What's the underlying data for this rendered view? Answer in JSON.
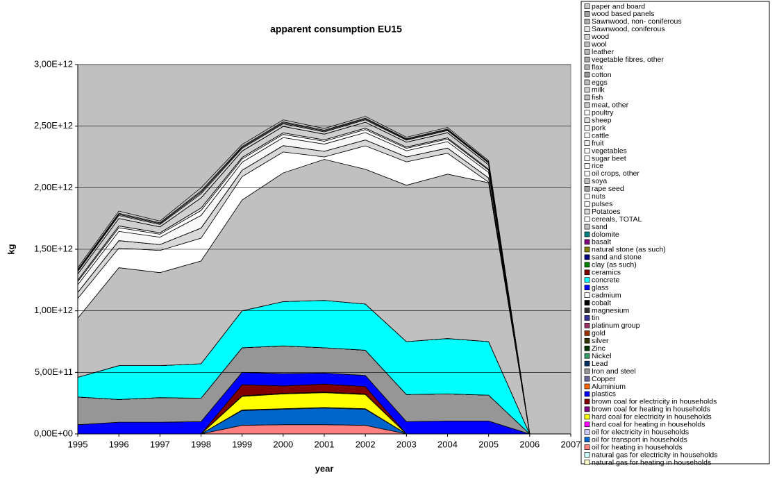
{
  "chart_data": {
    "type": "stacked_area",
    "title": "apparent consumption EU15",
    "x_label": "year",
    "y_label": "kg",
    "x": [
      1995,
      1996,
      1997,
      1998,
      1999,
      2000,
      2001,
      2002,
      2003,
      2004,
      2005,
      2006
    ],
    "xlim": [
      1995,
      2007
    ],
    "xticks": [
      1995,
      1996,
      1997,
      1998,
      1999,
      2000,
      2001,
      2002,
      2003,
      2004,
      2005,
      2006,
      2007
    ],
    "ylim": [
      0,
      3000000000000.0
    ],
    "yticks": [
      {
        "value": 0,
        "label": "0,00E+00"
      },
      {
        "value": 500000000000.0,
        "label": "5,00E+11"
      },
      {
        "value": 1000000000000.0,
        "label": "1,00E+12"
      },
      {
        "value": 1500000000000.0,
        "label": "1,50E+12"
      },
      {
        "value": 2000000000000.0,
        "label": "2,00E+12"
      },
      {
        "value": 2500000000000.0,
        "label": "2,50E+12"
      },
      {
        "value": 3000000000000.0,
        "label": "3,00E+12"
      }
    ],
    "grid": true,
    "legend": "right",
    "series": [
      {
        "name": "paper and board",
        "color": "#c8c8c8",
        "values": [
          15000000000.0,
          18000000000.0,
          14000000000.0,
          25000000000.0,
          16000000000.0,
          16000000000.0,
          14000000000.0,
          14000000000.0,
          12000000000.0,
          13000000000.0,
          10000000000.0,
          0
        ]
      },
      {
        "name": "wood based panels",
        "color": "#a0a0a0",
        "values": [
          8000000000.0,
          9000000000.0,
          7000000000.0,
          12000000000.0,
          8000000000.0,
          8000000000.0,
          7000000000.0,
          7000000000.0,
          6000000000.0,
          6000000000.0,
          5000000000.0,
          0
        ]
      },
      {
        "name": " Sawnwood, non- coniferous",
        "color": "#b0b0b0",
        "values": [
          0,
          0,
          0,
          0,
          0,
          0,
          0,
          0,
          0,
          0,
          0,
          0
        ]
      },
      {
        "name": "Sawnwood, coniferous",
        "color": "#e8e8e8",
        "values": [
          8000000000.0,
          9000000000.0,
          7000000000.0,
          12000000000.0,
          8000000000.0,
          8000000000.0,
          7000000000.0,
          7000000000.0,
          6000000000.0,
          6000000000.0,
          5000000000.0,
          0
        ]
      },
      {
        "name": "wood",
        "color": "#d8d8d8",
        "values": [
          20000000000.0,
          24000000000.0,
          19000000000.0,
          33000000000.0,
          21000000000.0,
          21000000000.0,
          18000000000.0,
          19000000000.0,
          16000000000.0,
          17000000000.0,
          14000000000.0,
          0
        ]
      },
      {
        "name": "wool",
        "color": "#c0c0c0",
        "values": [
          0,
          0,
          0,
          0,
          0,
          0,
          0,
          0,
          0,
          0,
          0,
          0
        ]
      },
      {
        "name": "leather",
        "color": "#b8b8b8",
        "values": [
          0,
          0,
          0,
          0,
          0,
          0,
          0,
          0,
          0,
          0,
          0,
          0
        ]
      },
      {
        "name": "vegetable fibres, other",
        "color": "#a8a8a8",
        "values": [
          0,
          0,
          0,
          0,
          0,
          0,
          0,
          0,
          0,
          0,
          0,
          0
        ]
      },
      {
        "name": "flax",
        "color": "#b0b0b0",
        "values": [
          0,
          0,
          0,
          0,
          0,
          0,
          0,
          0,
          0,
          0,
          0,
          0
        ]
      },
      {
        "name": "cotton",
        "color": "#989898",
        "values": [
          0,
          0,
          0,
          0,
          0,
          0,
          0,
          0,
          0,
          0,
          0,
          0
        ]
      },
      {
        "name": "eggs",
        "color": "#c0c0c0",
        "values": [
          0,
          0,
          0,
          0,
          0,
          0,
          0,
          0,
          0,
          0,
          0,
          0
        ]
      },
      {
        "name": "milk",
        "color": "#d0d0d0",
        "values": [
          50000000000.0,
          60000000000.0,
          48000000000.0,
          82000000000.0,
          52000000000.0,
          52000000000.0,
          46000000000.0,
          48000000000.0,
          40000000000.0,
          42000000000.0,
          35000000000.0,
          0
        ]
      },
      {
        "name": "fish",
        "color": "#c0c0c0",
        "values": [
          0,
          0,
          0,
          0,
          0,
          0,
          0,
          0,
          0,
          0,
          0,
          0
        ]
      },
      {
        "name": "meat, other",
        "color": "#c8c8c8",
        "values": [
          0,
          0,
          0,
          0,
          0,
          0,
          0,
          0,
          0,
          0,
          0,
          0
        ]
      },
      {
        "name": "poultry",
        "color": "#ffffff",
        "values": [
          0,
          0,
          0,
          0,
          0,
          0,
          0,
          0,
          0,
          0,
          0,
          0
        ]
      },
      {
        "name": "sheep",
        "color": "#e0e0e0",
        "values": [
          0,
          0,
          0,
          0,
          0,
          0,
          0,
          0,
          0,
          0,
          0,
          0
        ]
      },
      {
        "name": "pork",
        "color": "#f0f0f0",
        "values": [
          0,
          0,
          0,
          0,
          0,
          0,
          0,
          0,
          0,
          0,
          0,
          0
        ]
      },
      {
        "name": "cattle",
        "color": "#ffffff",
        "values": [
          0,
          0,
          0,
          0,
          0,
          0,
          0,
          0,
          0,
          0,
          0,
          0
        ]
      },
      {
        "name": "fruit",
        "color": "#f4f4f4",
        "values": [
          12000000000.0,
          15000000000.0,
          12000000000.0,
          20000000000.0,
          13000000000.0,
          13000000000.0,
          12000000000.0,
          12000000000.0,
          10000000000.0,
          10000000000.0,
          9000000000.0,
          0
        ]
      },
      {
        "name": "vegetables",
        "color": "#ffffff",
        "values": [
          25000000000.0,
          30000000000.0,
          24000000000.0,
          41000000000.0,
          26000000000.0,
          26000000000.0,
          23000000000.0,
          24000000000.0,
          20000000000.0,
          21000000000.0,
          18000000000.0,
          0
        ]
      },
      {
        "name": "sugar beet",
        "color": "#f8f8f8",
        "values": [
          62000000000.0,
          75000000000.0,
          60000000000.0,
          102000000000.0,
          65000000000.0,
          65000000000.0,
          58000000000.0,
          60000000000.0,
          50000000000.0,
          52000000000.0,
          44000000000.0,
          0
        ]
      },
      {
        "name": "rice",
        "color": "#ffffff",
        "values": [
          0,
          0,
          0,
          0,
          0,
          0,
          0,
          0,
          0,
          0,
          0,
          0
        ]
      },
      {
        "name": "oil crops, other",
        "color": "#ffffff",
        "values": [
          0,
          0,
          0,
          0,
          0,
          0,
          0,
          0,
          0,
          0,
          0,
          0
        ]
      },
      {
        "name": "soya",
        "color": "#c0c0c0",
        "values": [
          0,
          0,
          0,
          0,
          0,
          0,
          0,
          0,
          0,
          0,
          0,
          0
        ]
      },
      {
        "name": "rape seed",
        "color": "#a0a0a0",
        "values": [
          0,
          0,
          0,
          0,
          0,
          0,
          0,
          0,
          0,
          0,
          0,
          0
        ]
      },
      {
        "name": "nuts",
        "color": "#ffffff",
        "values": [
          0,
          0,
          0,
          0,
          0,
          0,
          0,
          0,
          0,
          0,
          0,
          0
        ]
      },
      {
        "name": "pulses",
        "color": "#ffffff",
        "values": [
          0,
          0,
          0,
          0,
          0,
          0,
          0,
          0,
          0,
          0,
          0,
          0
        ]
      },
      {
        "name": "Potatoes",
        "color": "#d8d8d8",
        "values": [
          50000000000.0,
          60000000000.0,
          48000000000.0,
          82000000000.0,
          52000000000.0,
          52000000000.0,
          46000000000.0,
          48000000000.0,
          40000000000.0,
          42000000000.0,
          35000000000.0,
          0
        ]
      },
      {
        "name": "cereals, TOTAL",
        "color": "#ffffff",
        "values": [
          160000000000.0,
          160000000000.0,
          180000000000.0,
          185000000000.0,
          190000000000.0,
          170000000000.0,
          20000000000.0,
          190000000000.0,
          190000000000.0,
          170000000000.0,
          5000000000.0,
          0
        ]
      },
      {
        "name": "sand",
        "color": "#c0c0c0",
        "values": [
          480000000000.0,
          795000000000.0,
          755000000000.0,
          835000000000.0,
          900000000000.0,
          1045000000000.0,
          1145000000000.0,
          1095000000000.0,
          1270000000000.0,
          1335000000000.0,
          1290000000000.0,
          0
        ]
      },
      {
        "name": "dolomite",
        "color": "#008080",
        "values": [
          0,
          0,
          0,
          0,
          0,
          0,
          0,
          0,
          0,
          0,
          0,
          0
        ]
      },
      {
        "name": "basalt",
        "color": "#800080",
        "values": [
          0,
          0,
          0,
          0,
          0,
          0,
          0,
          0,
          0,
          0,
          0,
          0
        ]
      },
      {
        "name": "natural stone (as such)",
        "color": "#808000",
        "values": [
          0,
          0,
          0,
          0,
          0,
          0,
          0,
          0,
          0,
          0,
          0,
          0
        ]
      },
      {
        "name": "sand and stone",
        "color": "#000080",
        "values": [
          0,
          0,
          0,
          0,
          0,
          0,
          0,
          0,
          0,
          0,
          0,
          0
        ]
      },
      {
        "name": "clay (as such)",
        "color": "#008000",
        "values": [
          0,
          0,
          0,
          0,
          0,
          0,
          0,
          0,
          0,
          0,
          0,
          0
        ]
      },
      {
        "name": "ceramics",
        "color": "#800000",
        "values": [
          0,
          0,
          0,
          0,
          0,
          0,
          0,
          0,
          0,
          0,
          0,
          0
        ]
      },
      {
        "name": "concrete",
        "color": "#00ffff",
        "values": [
          160000000000.0,
          275000000000.0,
          260000000000.0,
          280000000000.0,
          300000000000.0,
          360000000000.0,
          385000000000.0,
          375000000000.0,
          430000000000.0,
          450000000000.0,
          435000000000.0,
          0
        ]
      },
      {
        "name": "glass",
        "color": "#0000ff",
        "values": [
          0,
          0,
          0,
          0,
          0,
          0,
          0,
          0,
          0,
          0,
          0,
          0
        ]
      },
      {
        "name": "cadmium",
        "color": "#ffffff",
        "values": [
          0,
          0,
          0,
          0,
          0,
          0,
          0,
          0,
          0,
          0,
          0,
          0
        ]
      },
      {
        "name": "cobalt",
        "color": "#000000",
        "values": [
          0,
          0,
          0,
          0,
          0,
          0,
          0,
          0,
          0,
          0,
          0,
          0
        ]
      },
      {
        "name": "magnesium",
        "color": "#333333",
        "values": [
          0,
          0,
          0,
          0,
          0,
          0,
          0,
          0,
          0,
          0,
          0,
          0
        ]
      },
      {
        "name": "tin",
        "color": "#333399",
        "values": [
          0,
          0,
          0,
          0,
          0,
          0,
          0,
          0,
          0,
          0,
          0,
          0
        ]
      },
      {
        "name": "platinum group",
        "color": "#993366",
        "values": [
          0,
          0,
          0,
          0,
          0,
          0,
          0,
          0,
          0,
          0,
          0,
          0
        ]
      },
      {
        "name": "gold",
        "color": "#993300",
        "values": [
          0,
          0,
          0,
          0,
          0,
          0,
          0,
          0,
          0,
          0,
          0,
          0
        ]
      },
      {
        "name": "silver",
        "color": "#333300",
        "values": [
          0,
          0,
          0,
          0,
          0,
          0,
          0,
          0,
          0,
          0,
          0,
          0
        ]
      },
      {
        "name": "Zinc",
        "color": "#003300",
        "values": [
          0,
          0,
          0,
          0,
          0,
          0,
          0,
          0,
          0,
          0,
          0,
          0
        ]
      },
      {
        "name": "Nickel",
        "color": "#339966",
        "values": [
          0,
          0,
          0,
          0,
          0,
          0,
          0,
          0,
          0,
          0,
          0,
          0
        ]
      },
      {
        "name": "Lead",
        "color": "#003366",
        "values": [
          0,
          0,
          0,
          0,
          0,
          0,
          0,
          0,
          0,
          0,
          0,
          0
        ]
      },
      {
        "name": "Iron and steel",
        "color": "#969696",
        "values": [
          225000000000.0,
          185000000000.0,
          200000000000.0,
          190000000000.0,
          200000000000.0,
          225000000000.0,
          205000000000.0,
          205000000000.0,
          220000000000.0,
          220000000000.0,
          210000000000.0,
          0
        ]
      },
      {
        "name": "Copper",
        "color": "#666699",
        "values": [
          0,
          0,
          0,
          0,
          0,
          0,
          0,
          0,
          0,
          0,
          0,
          0
        ]
      },
      {
        "name": "Aluminium",
        "color": "#ff6600",
        "values": [
          0,
          0,
          0,
          0,
          0,
          0,
          0,
          0,
          0,
          0,
          0,
          0
        ]
      },
      {
        "name": "plastics",
        "color": "#0000ff",
        "values": [
          75000000000.0,
          95000000000.0,
          95000000000.0,
          100000000000.0,
          100000000000.0,
          100000000000.0,
          90000000000.0,
          90000000000.0,
          100000000000.0,
          105000000000.0,
          105000000000.0,
          0
        ]
      },
      {
        "name": "brown coal for electricity in households",
        "color": "#800000",
        "values": [
          0,
          0,
          0,
          0,
          90000000000.0,
          60000000000.0,
          65000000000.0,
          60000000000.0,
          0,
          0,
          0,
          0
        ]
      },
      {
        "name": "brown coal for heating in households",
        "color": "#800080",
        "values": [
          0,
          0,
          0,
          0,
          5000000000.0,
          5000000000.0,
          5000000000.0,
          5000000000.0,
          0,
          0,
          0,
          0
        ]
      },
      {
        "name": "hard coal for electricity in households",
        "color": "#ffff00",
        "values": [
          0,
          0,
          0,
          0,
          110000000000.0,
          120000000000.0,
          120000000000.0,
          115000000000.0,
          0,
          0,
          0,
          0
        ]
      },
      {
        "name": "hard coal for heating in households",
        "color": "#ff00ff",
        "values": [
          0,
          0,
          0,
          0,
          0,
          0,
          0,
          0,
          0,
          0,
          0,
          0
        ]
      },
      {
        "name": "oil for electricity in households",
        "color": "#ccccff",
        "values": [
          0,
          0,
          0,
          0,
          5000000000.0,
          5000000000.0,
          5000000000.0,
          5000000000.0,
          0,
          0,
          0,
          0
        ]
      },
      {
        "name": "oil for transport in households",
        "color": "#0066cc",
        "values": [
          0,
          0,
          0,
          0,
          120000000000.0,
          125000000000.0,
          135000000000.0,
          130000000000.0,
          0,
          0,
          0,
          0
        ]
      },
      {
        "name": "oil for heating in households",
        "color": "#ff8080",
        "values": [
          0,
          0,
          0,
          0,
          70000000000.0,
          75000000000.0,
          75000000000.0,
          70000000000.0,
          0,
          0,
          0,
          0
        ]
      },
      {
        "name": "natural gas for electricity in households",
        "color": "#ccffff",
        "values": [
          0,
          0,
          0,
          0,
          0,
          0,
          0,
          0,
          0,
          0,
          0,
          0
        ]
      },
      {
        "name": "natural gas for heating in households",
        "color": "#ffffcc",
        "values": [
          0,
          0,
          0,
          0,
          0,
          0,
          0,
          0,
          0,
          0,
          0,
          0
        ]
      }
    ]
  }
}
